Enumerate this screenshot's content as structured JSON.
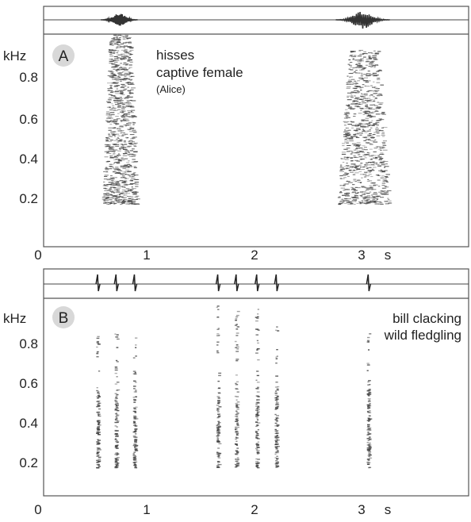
{
  "panels": [
    {
      "letter": "A",
      "unit": "kHz",
      "y_ticks": [
        "0.8",
        "0.6",
        "0.4",
        "0.2"
      ],
      "x_ticks": [
        "0",
        "1",
        "2",
        "3"
      ],
      "x_unit": "s",
      "caption": [
        "hisses",
        "captive female",
        "(Alice)"
      ],
      "events": [
        {
          "kind": "hiss",
          "t_start": 0.58,
          "t_end": 0.92,
          "f_low_khz": 0.1,
          "f_high_khz": 0.96
        },
        {
          "kind": "hiss",
          "t_start": 2.75,
          "t_end": 3.25,
          "f_low_khz": 0.1,
          "f_high_khz": 0.88
        }
      ]
    },
    {
      "letter": "B",
      "unit": "kHz",
      "y_ticks": [
        "0.8",
        "0.6",
        "0.4",
        "0.2"
      ],
      "x_ticks": [
        "0",
        "1",
        "2",
        "3"
      ],
      "x_unit": "s",
      "caption": [
        "bill clacking",
        "wild fledgling"
      ],
      "clacks_s": [
        0.55,
        0.72,
        0.89,
        1.66,
        1.83,
        2.02,
        2.2,
        3.05
      ]
    }
  ],
  "colors": {
    "trace": "#444444",
    "frame": "#555555",
    "badge": "#d8d8d8"
  }
}
